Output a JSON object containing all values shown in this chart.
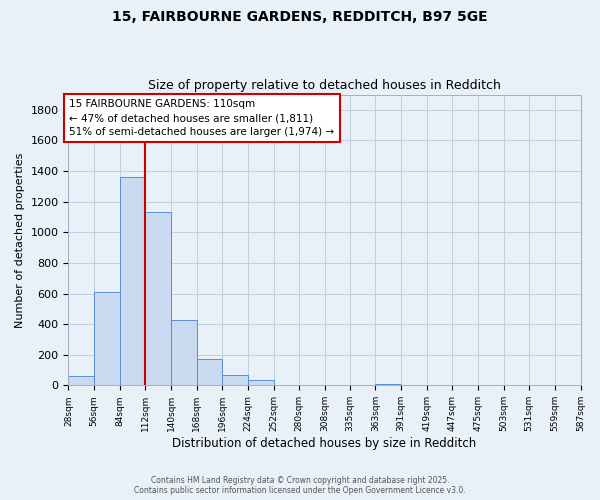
{
  "title1": "15, FAIRBOURNE GARDENS, REDDITCH, B97 5GE",
  "title2": "Size of property relative to detached houses in Redditch",
  "xlabel": "Distribution of detached houses by size in Redditch",
  "ylabel": "Number of detached properties",
  "bins_left": [
    28,
    56,
    84,
    112,
    140,
    168,
    196,
    224,
    252,
    280,
    308,
    335,
    363,
    391,
    419,
    447,
    475,
    503,
    531,
    559
  ],
  "bin_width": 28,
  "bar_heights": [
    60,
    610,
    1360,
    1130,
    430,
    170,
    65,
    35,
    0,
    0,
    0,
    0,
    10,
    0,
    0,
    0,
    0,
    0,
    0,
    0
  ],
  "bar_color": "#c9d9f0",
  "bar_edge_color": "#5b8fd4",
  "vline_x": 112,
  "vline_color": "#cc0000",
  "ylim": [
    0,
    1900
  ],
  "yticks": [
    0,
    200,
    400,
    600,
    800,
    1000,
    1200,
    1400,
    1600,
    1800
  ],
  "xtick_labels": [
    "28sqm",
    "56sqm",
    "84sqm",
    "112sqm",
    "140sqm",
    "168sqm",
    "196sqm",
    "224sqm",
    "252sqm",
    "280sqm",
    "308sqm",
    "335sqm",
    "363sqm",
    "391sqm",
    "419sqm",
    "447sqm",
    "475sqm",
    "503sqm",
    "531sqm",
    "559sqm",
    "587sqm"
  ],
  "annotation_box_title": "15 FAIRBOURNE GARDENS: 110sqm",
  "annotation_line1": "← 47% of detached houses are smaller (1,811)",
  "annotation_line2": "51% of semi-detached houses are larger (1,974) →",
  "annotation_box_color": "#cc0000",
  "grid_color": "#c0cfe0",
  "bg_color": "#e8f0f8",
  "footer1": "Contains HM Land Registry data © Crown copyright and database right 2025.",
  "footer2": "Contains public sector information licensed under the Open Government Licence v3.0."
}
